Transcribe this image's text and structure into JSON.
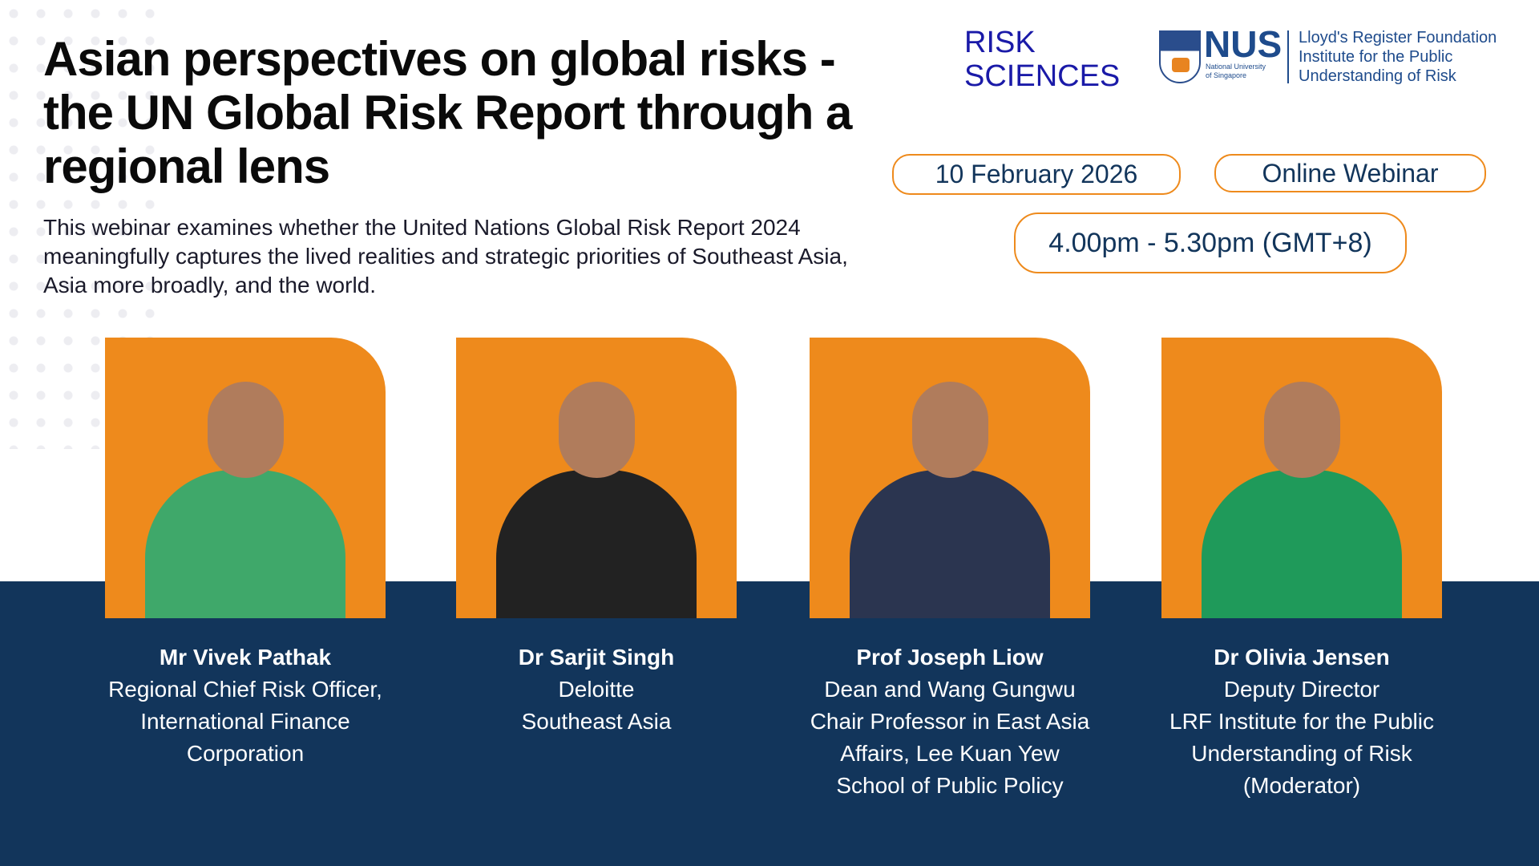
{
  "title": "Asian perspectives on global risks - the UN Global Risk Report through a regional lens",
  "description": "This webinar examines whether the United Nations Global Risk Report 2024 meaningfully captures the lived realities and strategic priorities of Southeast Asia, Asia more broadly, and the world.",
  "logos": {
    "risk_line1": "RISK",
    "risk_line2": "SCIENCES",
    "nus": "NUS",
    "nus_sub1": "National University",
    "nus_sub2": "of Singapore",
    "lrf_line1": "Lloyd's Register Foundation",
    "lrf_line2": "Institute for the Public",
    "lrf_line3": "Understanding of Risk"
  },
  "event": {
    "date": "10 February 2026",
    "format": "Online Webinar",
    "time": "4.00pm - 5.30pm (GMT+8)"
  },
  "colors": {
    "accent": "#ee8a1c",
    "navy": "#12355b"
  },
  "speakers": [
    {
      "name": "Mr Vivek Pathak",
      "role": [
        "Regional Chief Risk Officer,",
        "International Finance",
        "Corporation"
      ],
      "shirt": "#3fa86a"
    },
    {
      "name": "Dr Sarjit Singh",
      "role": [
        "Deloitte",
        "Southeast Asia"
      ],
      "shirt": "#222"
    },
    {
      "name": "Prof Joseph Liow",
      "role": [
        "Dean and Wang Gungwu",
        "Chair Professor in East Asia",
        "Affairs, Lee Kuan Yew",
        "School of Public Policy"
      ],
      "shirt": "#2b3550"
    },
    {
      "name": "Dr Olivia Jensen",
      "role": [
        "Deputy Director",
        "LRF Institute for the Public",
        "Understanding of Risk",
        "(Moderator)"
      ],
      "shirt": "#1f9a5a"
    }
  ]
}
